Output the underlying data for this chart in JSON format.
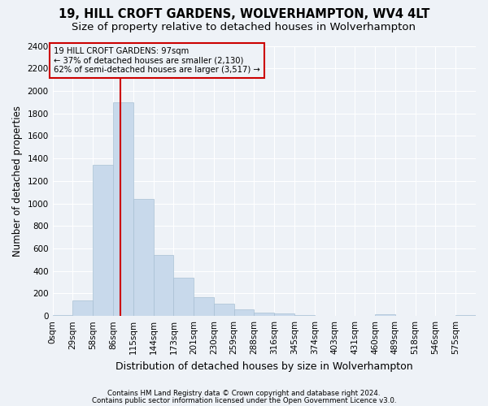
{
  "title": "19, HILL CROFT GARDENS, WOLVERHAMPTON, WV4 4LT",
  "subtitle": "Size of property relative to detached houses in Wolverhampton",
  "xlabel": "Distribution of detached houses by size in Wolverhampton",
  "ylabel": "Number of detached properties",
  "footer1": "Contains HM Land Registry data © Crown copyright and database right 2024.",
  "footer2": "Contains public sector information licensed under the Open Government Licence v3.0.",
  "annotation_title": "19 HILL CROFT GARDENS: 97sqm",
  "annotation_line1": "← 37% of detached houses are smaller (2,130)",
  "annotation_line2": "62% of semi-detached houses are larger (3,517) →",
  "bar_color": "#c8d9eb",
  "bar_edge_color": "#a8c0d4",
  "vline_x": 3,
  "vline_color": "#cc0000",
  "categories": [
    "0sqm",
    "29sqm",
    "58sqm",
    "86sqm",
    "115sqm",
    "144sqm",
    "173sqm",
    "201sqm",
    "230sqm",
    "259sqm",
    "288sqm",
    "316sqm",
    "345sqm",
    "374sqm",
    "403sqm",
    "431sqm",
    "460sqm",
    "489sqm",
    "518sqm",
    "546sqm",
    "575sqm"
  ],
  "values": [
    10,
    135,
    1345,
    1900,
    1040,
    545,
    340,
    170,
    110,
    60,
    28,
    20,
    5,
    2,
    0,
    0,
    15,
    0,
    0,
    0,
    5
  ],
  "n_bins": 21,
  "ylim": [
    0,
    2400
  ],
  "yticks": [
    0,
    200,
    400,
    600,
    800,
    1000,
    1200,
    1400,
    1600,
    1800,
    2000,
    2200,
    2400
  ],
  "bg_color": "#eef2f7",
  "grid_color": "#ffffff",
  "title_fontsize": 10.5,
  "subtitle_fontsize": 9.5,
  "tick_fontsize": 7.5,
  "ylabel_fontsize": 8.5,
  "xlabel_fontsize": 9
}
